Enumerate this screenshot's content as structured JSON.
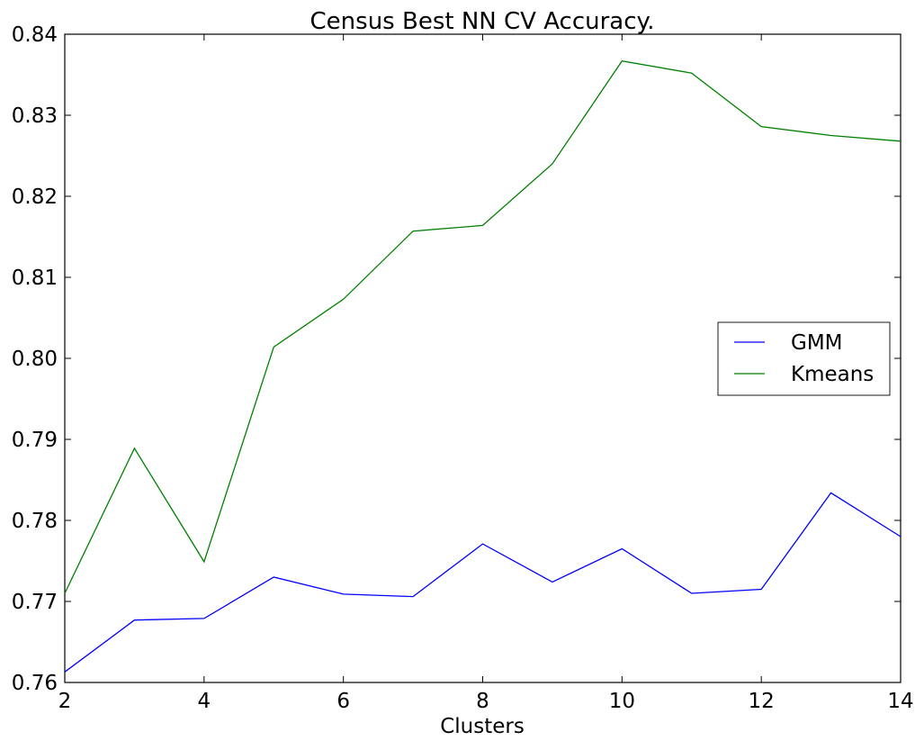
{
  "chart_data": {
    "type": "line",
    "title": "Census Best NN CV Accuracy.",
    "xlabel": "Clusters",
    "ylabel": "",
    "xlim": [
      2,
      14
    ],
    "ylim": [
      0.76,
      0.84
    ],
    "x": [
      2,
      3,
      4,
      5,
      6,
      7,
      8,
      9,
      10,
      11,
      12,
      13,
      14
    ],
    "x_ticks": [
      2,
      4,
      6,
      8,
      10,
      12,
      14
    ],
    "x_tick_labels": [
      "2",
      "4",
      "6",
      "8",
      "10",
      "12",
      "14"
    ],
    "y_ticks": [
      0.76,
      0.77,
      0.78,
      0.79,
      0.8,
      0.81,
      0.82,
      0.83,
      0.84
    ],
    "y_tick_labels": [
      "0.76",
      "0.77",
      "0.78",
      "0.79",
      "0.80",
      "0.81",
      "0.82",
      "0.83",
      "0.84"
    ],
    "grid": false,
    "legend_position": "center-right",
    "series": [
      {
        "name": "GMM",
        "color": "#0000ff",
        "values": [
          0.7613,
          0.7677,
          0.7679,
          0.773,
          0.7709,
          0.7706,
          0.7771,
          0.7724,
          0.7765,
          0.771,
          0.7715,
          0.7834,
          0.778
        ]
      },
      {
        "name": "Kmeans",
        "color": "#008000",
        "values": [
          0.771,
          0.7889,
          0.7749,
          0.8014,
          0.8073,
          0.8157,
          0.8164,
          0.824,
          0.8367,
          0.8352,
          0.8286,
          0.8275,
          0.8268
        ]
      }
    ]
  }
}
